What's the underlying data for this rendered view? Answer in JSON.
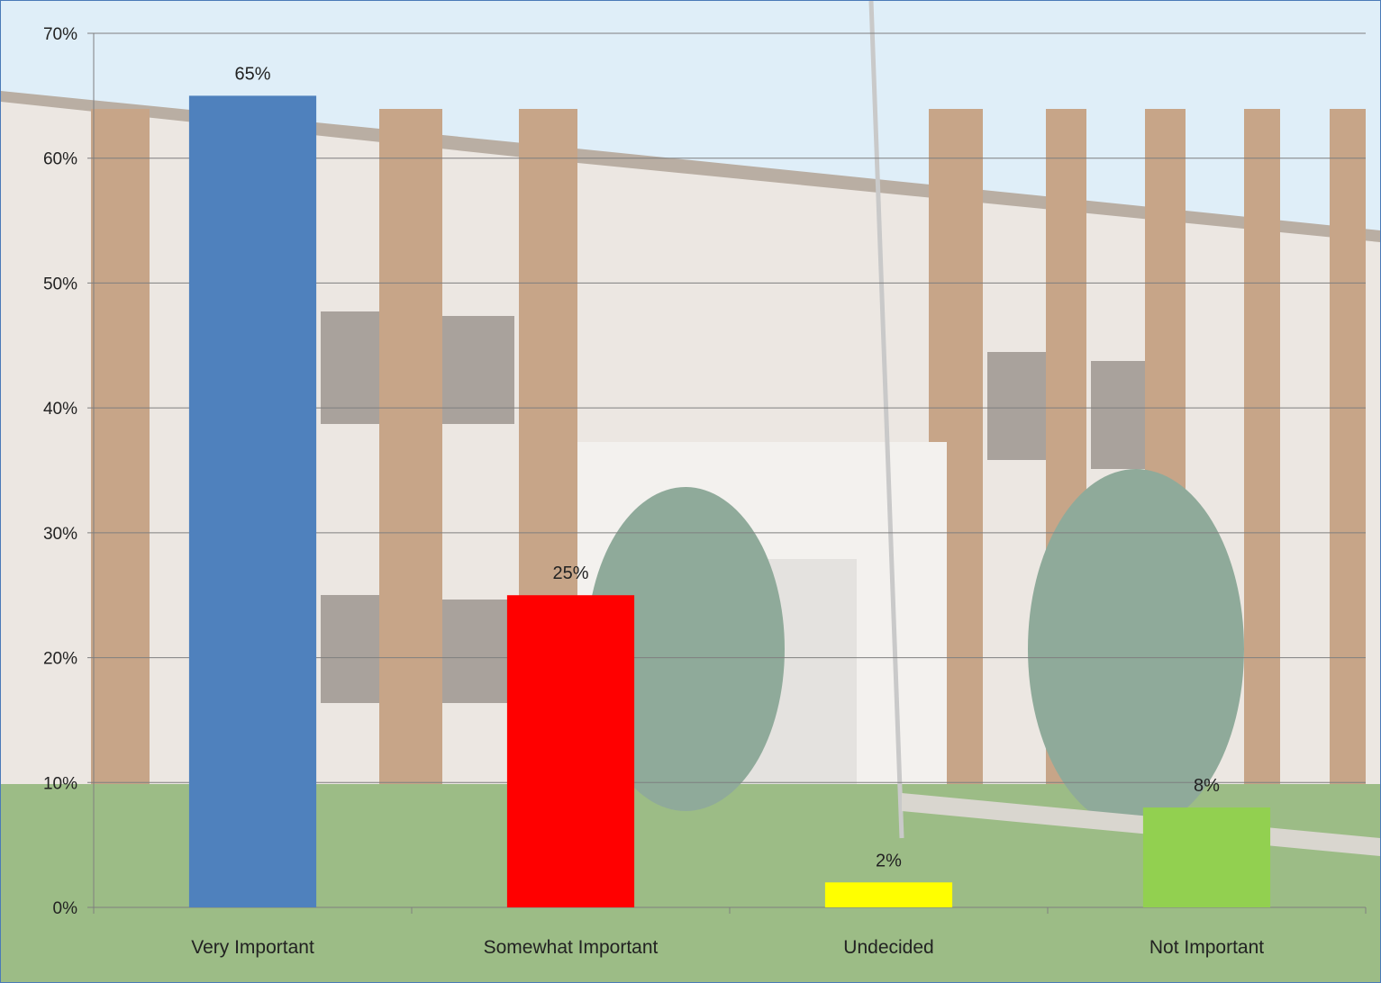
{
  "chart_data": {
    "type": "bar",
    "categories": [
      "Very Important",
      "Somewhat Important",
      "Undecided",
      "Not Important"
    ],
    "values": [
      65,
      25,
      2,
      8
    ],
    "data_labels": [
      "65%",
      "25%",
      "2%",
      "8%"
    ],
    "bar_colors": [
      "#4f81bd",
      "#ff0000",
      "#ffff00",
      "#92d050"
    ],
    "y_ticks": [
      0,
      10,
      20,
      30,
      40,
      50,
      60,
      70
    ],
    "y_tick_labels": [
      "0%",
      "10%",
      "20%",
      "30%",
      "40%",
      "50%",
      "60%",
      "70%"
    ],
    "ylim": [
      0,
      70
    ],
    "grid": true,
    "legend": "none",
    "title": "",
    "xlabel": "",
    "ylabel": ""
  },
  "background": {
    "description_icon": "school-building-photo-icon",
    "sky": "#dfeef8",
    "wall": "#ece7e2",
    "brick": "#c7a588",
    "grass": "#9cbc86",
    "tree": "#8faa9a"
  }
}
